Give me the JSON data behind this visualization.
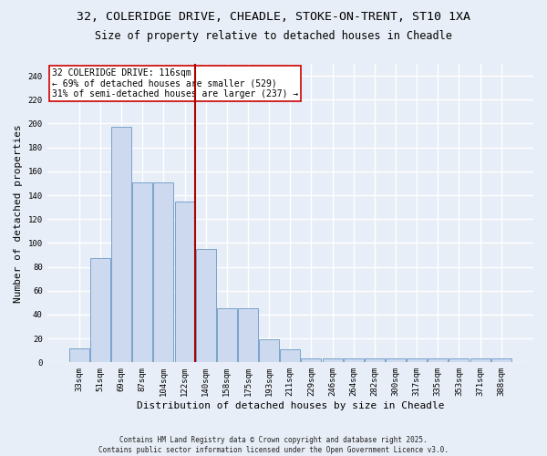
{
  "title1": "32, COLERIDGE DRIVE, CHEADLE, STOKE-ON-TRENT, ST10 1XA",
  "title2": "Size of property relative to detached houses in Cheadle",
  "xlabel": "Distribution of detached houses by size in Cheadle",
  "ylabel": "Number of detached properties",
  "bar_labels": [
    "33sqm",
    "51sqm",
    "69sqm",
    "87sqm",
    "104sqm",
    "122sqm",
    "140sqm",
    "158sqm",
    "175sqm",
    "193sqm",
    "211sqm",
    "229sqm",
    "246sqm",
    "264sqm",
    "282sqm",
    "300sqm",
    "317sqm",
    "335sqm",
    "353sqm",
    "371sqm",
    "388sqm"
  ],
  "bar_values": [
    12,
    87,
    197,
    151,
    151,
    135,
    95,
    45,
    45,
    19,
    11,
    3,
    3,
    3,
    3,
    3,
    3,
    3,
    3,
    3,
    3
  ],
  "bar_color": "#ccd9ee",
  "bar_edge_color": "#7aa3cc",
  "background_color": "#e8eef7",
  "grid_color": "#ffffff",
  "vline_color": "#aa0000",
  "annotation_text": "32 COLERIDGE DRIVE: 116sqm\n← 69% of detached houses are smaller (529)\n31% of semi-detached houses are larger (237) →",
  "annotation_box_color": "#ffffff",
  "annotation_box_edge_color": "#cc0000",
  "ylim": [
    0,
    250
  ],
  "yticks": [
    0,
    20,
    40,
    60,
    80,
    100,
    120,
    140,
    160,
    180,
    200,
    220,
    240
  ],
  "footer_text": "Contains HM Land Registry data © Crown copyright and database right 2025.\nContains public sector information licensed under the Open Government Licence v3.0.",
  "title1_fontsize": 9.5,
  "title2_fontsize": 8.5,
  "tick_fontsize": 6.5,
  "label_fontsize": 8,
  "annotation_fontsize": 7,
  "footer_fontsize": 5.5
}
